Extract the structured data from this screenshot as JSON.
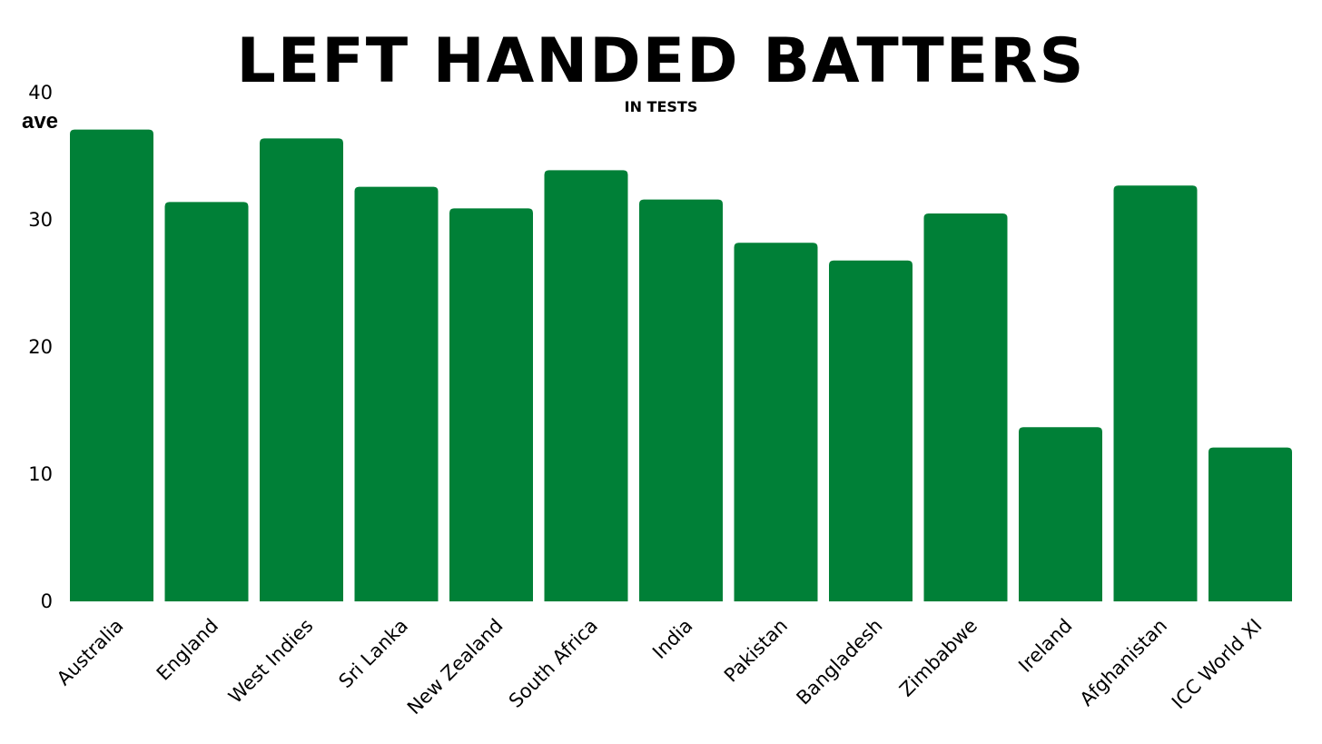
{
  "chart_data": {
    "type": "bar",
    "title": "Left Handed Batters",
    "subtitle": "in tests",
    "xlabel": "",
    "ylabel": "ave",
    "ylim": [
      0,
      40
    ],
    "yticks": [
      0,
      10,
      20,
      30,
      40
    ],
    "categories": [
      "Australia",
      "England",
      "West Indies",
      "Sri Lanka",
      "New Zealand",
      "South Africa",
      "India",
      "Pakistan",
      "Bangladesh",
      "Zimbabwe",
      "Ireland",
      "Afghanistan",
      "ICC World XI"
    ],
    "values": [
      37.1,
      31.4,
      36.4,
      32.6,
      30.9,
      33.9,
      31.6,
      28.2,
      26.8,
      30.5,
      13.7,
      32.7,
      12.1
    ],
    "bar_color": "#008037",
    "grid": false,
    "legend": "none"
  }
}
